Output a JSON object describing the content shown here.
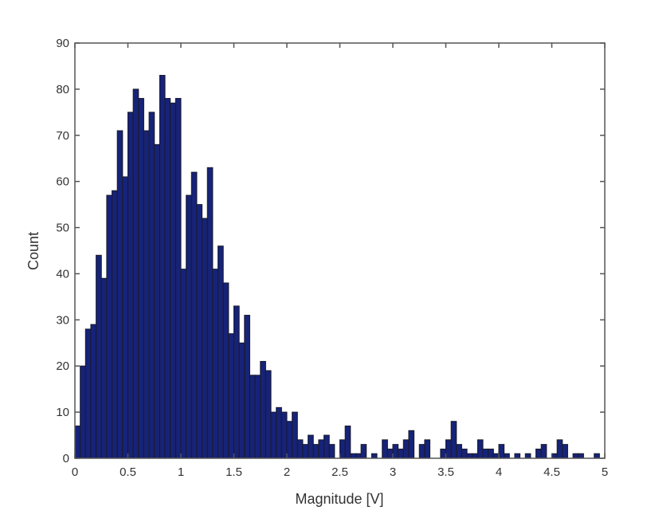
{
  "chart_data": {
    "type": "bar",
    "title": "",
    "xlabel": "Magnitude [V]",
    "ylabel": "Count",
    "xlim": [
      0,
      5
    ],
    "ylim": [
      0,
      90
    ],
    "grid": false,
    "legend": null,
    "bar_color": "#162378",
    "edge_color": "#1a1a2a",
    "bin_width": 0.05,
    "x_ticks": [
      "0",
      "0.5",
      "1",
      "1.5",
      "2",
      "2.5",
      "3",
      "3.5",
      "4",
      "4.5",
      "5"
    ],
    "y_ticks": [
      "0",
      "10",
      "20",
      "30",
      "40",
      "50",
      "60",
      "70",
      "80",
      "90"
    ],
    "bin_start": 0,
    "values": [
      7,
      20,
      28,
      29,
      44,
      39,
      57,
      58,
      71,
      61,
      75,
      80,
      78,
      71,
      75,
      68,
      83,
      78,
      77,
      78,
      41,
      57,
      62,
      55,
      52,
      63,
      41,
      46,
      38,
      27,
      33,
      25,
      31,
      18,
      18,
      21,
      19,
      10,
      11,
      10,
      8,
      10,
      4,
      3,
      5,
      3,
      4,
      5,
      3,
      0,
      4,
      7,
      1,
      1,
      3,
      0,
      1,
      0,
      4,
      2,
      3,
      2,
      4,
      6,
      0,
      3,
      4,
      0,
      0,
      2,
      4,
      8,
      3,
      2,
      1,
      1,
      4,
      2,
      2,
      1,
      3,
      1,
      0,
      1,
      0,
      1,
      0,
      2,
      3,
      0,
      1,
      4,
      3,
      0,
      1,
      1,
      0,
      0,
      1,
      0
    ]
  }
}
